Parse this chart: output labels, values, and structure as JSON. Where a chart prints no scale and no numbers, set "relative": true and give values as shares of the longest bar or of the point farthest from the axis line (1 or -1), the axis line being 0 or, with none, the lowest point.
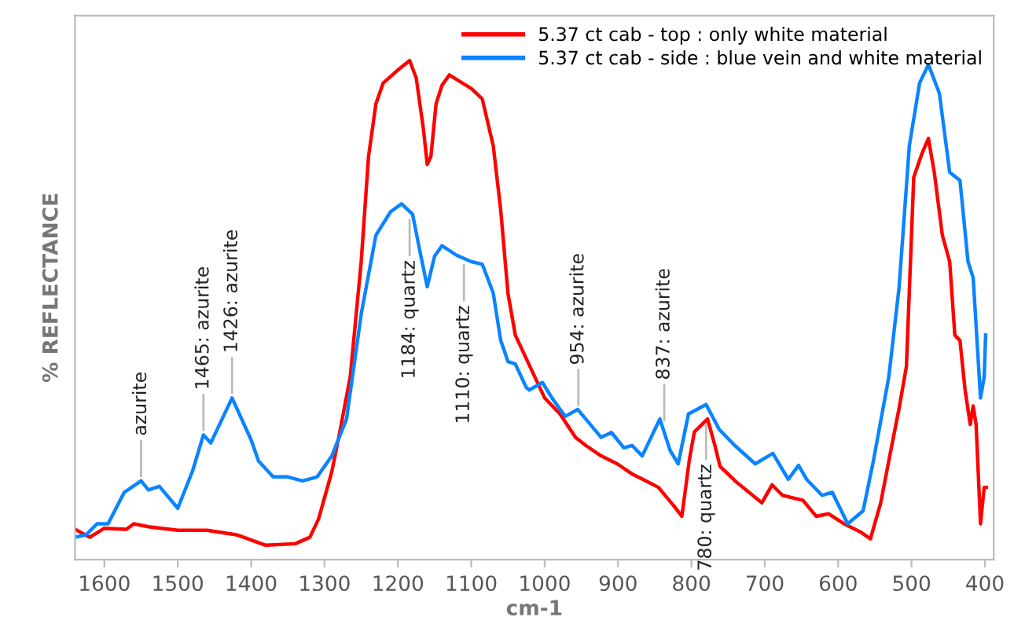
{
  "chart_data": {
    "type": "line",
    "relative": true,
    "xlabel": "cm-1",
    "ylabel": "% REFLECTANCE",
    "xlim": [
      1640,
      388
    ],
    "xticks": [
      1600,
      1500,
      1400,
      1300,
      1200,
      1100,
      1000,
      900,
      800,
      700,
      600,
      500,
      400
    ],
    "tick_labels": "x",
    "legend": "top right",
    "grid": false,
    "marker": "none",
    "line_style": "solid",
    "series": [
      {
        "name": "5.37 ct cab - top : only white material",
        "color": "#ff0000",
        "x": [
          1640,
          1620,
          1600,
          1570,
          1560,
          1540,
          1500,
          1460,
          1420,
          1380,
          1340,
          1320,
          1308,
          1290,
          1280,
          1265,
          1250,
          1240,
          1230,
          1220,
          1200,
          1184,
          1175,
          1165,
          1160,
          1155,
          1148,
          1140,
          1130,
          1100,
          1085,
          1070,
          1060,
          1050,
          1040,
          1020,
          1000,
          979,
          958,
          944,
          923,
          901,
          880,
          866,
          845,
          824,
          813,
          803,
          796,
          778,
          768,
          761,
          739,
          704,
          690,
          676,
          648,
          630,
          613,
          592,
          570,
          556,
          542,
          531,
          517,
          507,
          497,
          486,
          477,
          469,
          458,
          448,
          441,
          434,
          427,
          420,
          416,
          412,
          406,
          401,
          399,
          398
        ],
        "values": [
          0.061,
          0.045,
          0.063,
          0.061,
          0.072,
          0.066,
          0.059,
          0.059,
          0.05,
          0.029,
          0.032,
          0.045,
          0.082,
          0.177,
          0.25,
          0.366,
          0.597,
          0.808,
          0.913,
          0.955,
          0.981,
          1.0,
          0.965,
          0.86,
          0.792,
          0.808,
          0.913,
          0.95,
          0.971,
          0.944,
          0.923,
          0.829,
          0.702,
          0.534,
          0.45,
          0.387,
          0.324,
          0.292,
          0.245,
          0.229,
          0.208,
          0.192,
          0.171,
          0.161,
          0.145,
          0.108,
          0.087,
          0.198,
          0.256,
          0.282,
          0.229,
          0.187,
          0.156,
          0.114,
          0.15,
          0.129,
          0.119,
          0.087,
          0.092,
          0.072,
          0.056,
          0.042,
          0.114,
          0.198,
          0.303,
          0.387,
          0.766,
          0.813,
          0.844,
          0.776,
          0.65,
          0.597,
          0.45,
          0.439,
          0.34,
          0.271,
          0.308,
          0.271,
          0.072,
          0.145,
          0.145,
          0.145
        ]
      },
      {
        "name": "5.37 ct cab - side : blue vein and white material",
        "color": "#0a84ff",
        "x": [
          1640,
          1625,
          1610,
          1595,
          1573,
          1550,
          1540,
          1525,
          1500,
          1480,
          1465,
          1455,
          1426,
          1400,
          1390,
          1370,
          1350,
          1330,
          1310,
          1290,
          1270,
          1250,
          1230,
          1210,
          1195,
          1180,
          1170,
          1160,
          1150,
          1140,
          1120,
          1100,
          1085,
          1070,
          1060,
          1050,
          1040,
          1025,
          1021,
          1003,
          990,
          972,
          955,
          944,
          923,
          909,
          892,
          881,
          867,
          843,
          829,
          818,
          804,
          780,
          762,
          741,
          713,
          689,
          668,
          654,
          643,
          622,
          608,
          587,
          566,
          552,
          531,
          517,
          503,
          489,
          477,
          462,
          448,
          434,
          423,
          416,
          406,
          401,
          399
        ],
        "values": [
          0.045,
          0.05,
          0.072,
          0.072,
          0.135,
          0.158,
          0.14,
          0.147,
          0.103,
          0.177,
          0.25,
          0.234,
          0.324,
          0.24,
          0.198,
          0.166,
          0.166,
          0.158,
          0.166,
          0.208,
          0.282,
          0.492,
          0.65,
          0.697,
          0.713,
          0.692,
          0.618,
          0.547,
          0.608,
          0.629,
          0.61,
          0.597,
          0.592,
          0.534,
          0.44,
          0.397,
          0.392,
          0.345,
          0.34,
          0.355,
          0.324,
          0.287,
          0.301,
          0.282,
          0.245,
          0.255,
          0.224,
          0.229,
          0.208,
          0.282,
          0.219,
          0.192,
          0.292,
          0.311,
          0.261,
          0.229,
          0.192,
          0.213,
          0.161,
          0.189,
          0.161,
          0.129,
          0.135,
          0.072,
          0.098,
          0.198,
          0.366,
          0.545,
          0.829,
          0.955,
          0.992,
          0.934,
          0.776,
          0.76,
          0.597,
          0.565,
          0.324,
          0.366,
          0.45
        ]
      }
    ],
    "annotations": [
      {
        "text": "azurite",
        "x": 1550,
        "y": 0.158
      },
      {
        "text": "1465: azurite",
        "x": 1465,
        "y": 0.25
      },
      {
        "text": "1426: azurite",
        "x": 1426,
        "y": 0.324
      },
      {
        "text": "1184: quartz",
        "x": 1184,
        "y": 0.69
      },
      {
        "text": "1110: quartz",
        "x": 1110,
        "y": 0.6
      },
      {
        "text": "954: azurite",
        "x": 954,
        "y": 0.3
      },
      {
        "text": "837: azurite",
        "x": 837,
        "y": 0.27
      },
      {
        "text": "780: quartz",
        "x": 780,
        "y": 0.282
      }
    ]
  }
}
